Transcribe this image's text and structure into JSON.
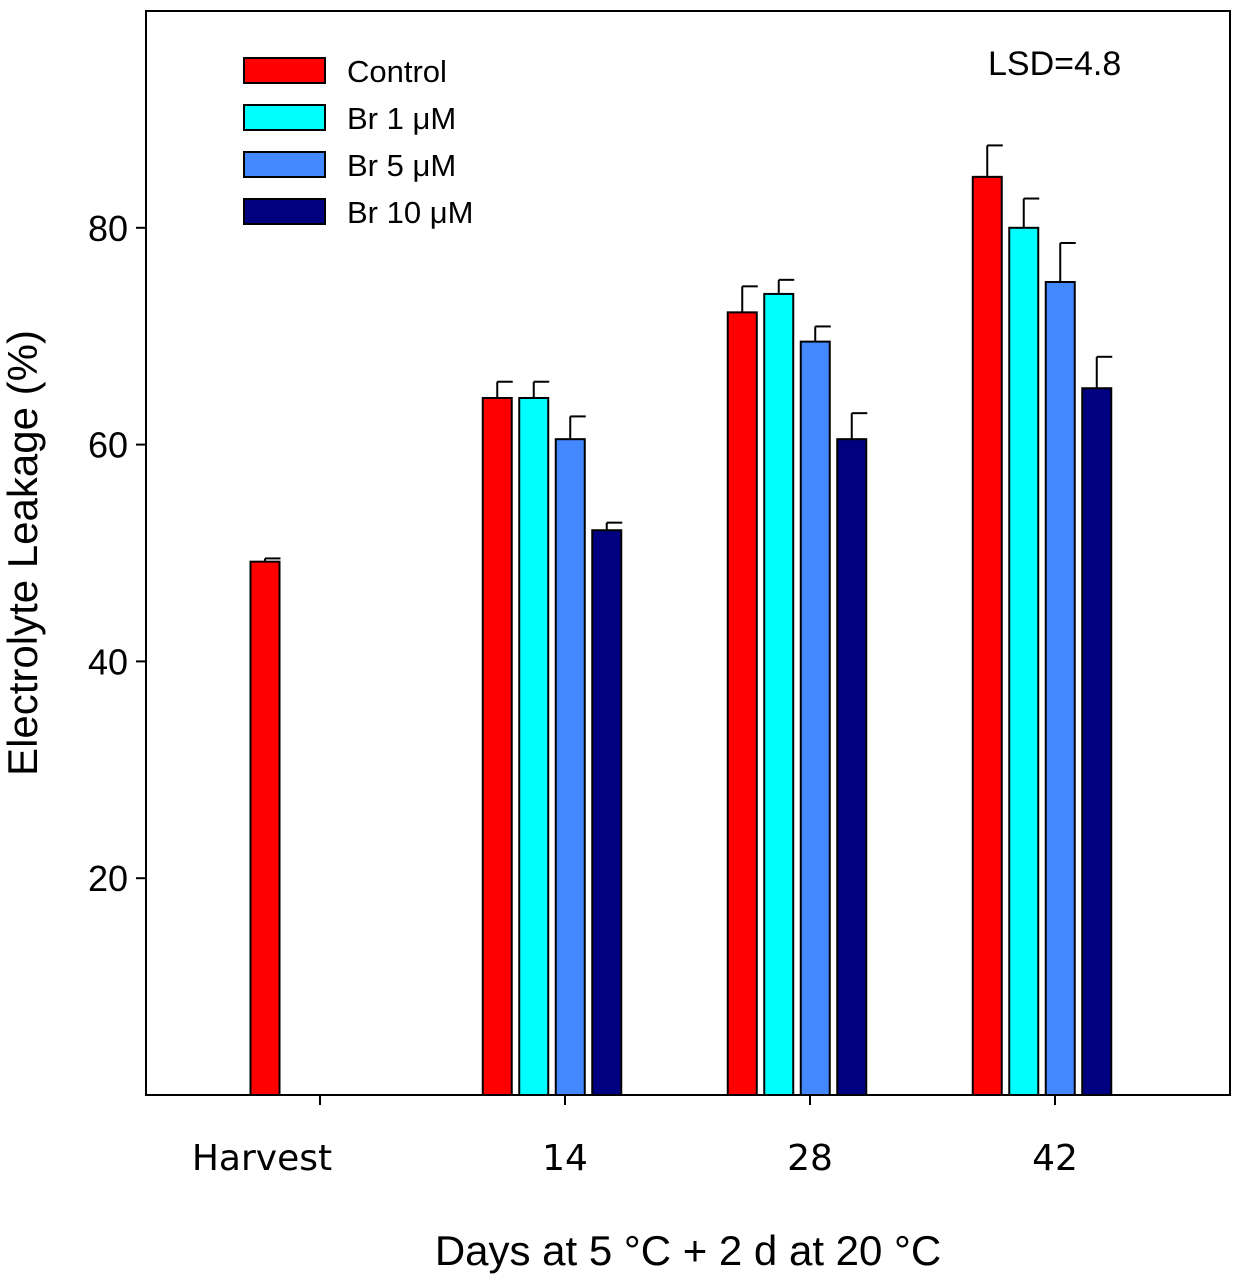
{
  "chart_data": {
    "type": "bar",
    "title": "",
    "xlabel": "Days at 5 °C + 2 d at 20 °C",
    "ylabel": "Electrolyte Leakage (%)",
    "ylim": [
      0,
      100
    ],
    "yticks": [
      20,
      40,
      60,
      80
    ],
    "categories": [
      "Harvest",
      "14",
      "28",
      "42"
    ],
    "series": [
      {
        "name": "Control",
        "color": "#ff0000",
        "values": [
          49.2,
          64.3,
          72.2,
          84.7
        ],
        "errors": [
          0.3,
          1.5,
          2.4,
          2.9
        ]
      },
      {
        "name": "Br 1 μM",
        "color": "#00ffff",
        "values": [
          null,
          64.3,
          73.9,
          80.0
        ],
        "errors": [
          null,
          1.5,
          1.3,
          2.7
        ]
      },
      {
        "name": "Br 5 μM",
        "color": "#4488ff",
        "values": [
          null,
          60.5,
          69.5,
          75.0
        ],
        "errors": [
          null,
          2.1,
          1.4,
          3.6
        ]
      },
      {
        "name": "Br 10 μM",
        "color": "#000080",
        "values": [
          null,
          52.1,
          60.5,
          65.2
        ],
        "errors": [
          null,
          0.7,
          2.4,
          2.9
        ]
      }
    ],
    "annotation": "LSD=4.8",
    "legend_position": "top-left"
  }
}
